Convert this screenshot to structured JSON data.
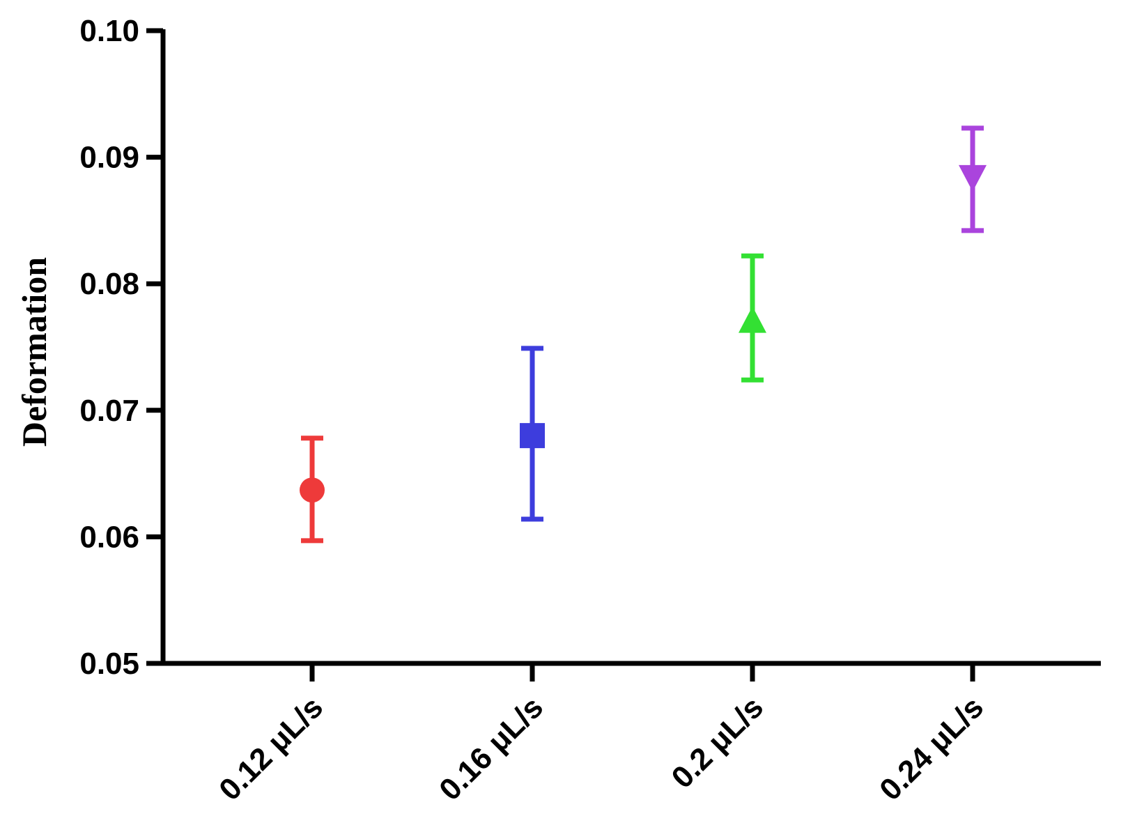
{
  "chart_data": {
    "type": "scatter",
    "title": "",
    "xlabel": "",
    "ylabel": "Deformation",
    "ylim": [
      0.05,
      0.1
    ],
    "yticks": [
      0.05,
      0.06,
      0.07,
      0.08,
      0.09,
      0.1
    ],
    "ytick_labels": [
      "0.05",
      "0.06",
      "0.07",
      "0.08",
      "0.09",
      "0.10"
    ],
    "categories": [
      "0.12 μL/s",
      "0.16 μL/s",
      "0.2 μL/s",
      "0.24 μL/s"
    ],
    "grid": false,
    "legend": "none",
    "points": [
      {
        "category": "0.12 μL/s",
        "mean": 0.0637,
        "lower": 0.0597,
        "upper": 0.0678,
        "marker": "circle",
        "color": "#ee3a3a"
      },
      {
        "category": "0.16 μL/s",
        "mean": 0.068,
        "lower": 0.0614,
        "upper": 0.0749,
        "marker": "square",
        "color": "#3d3ddd"
      },
      {
        "category": "0.2 μL/s",
        "mean": 0.077,
        "lower": 0.0724,
        "upper": 0.0822,
        "marker": "triangle-up",
        "color": "#33e033"
      },
      {
        "category": "0.24 μL/s",
        "mean": 0.0885,
        "lower": 0.0842,
        "upper": 0.0923,
        "marker": "triangle-down",
        "color": "#aa44dd"
      }
    ]
  }
}
